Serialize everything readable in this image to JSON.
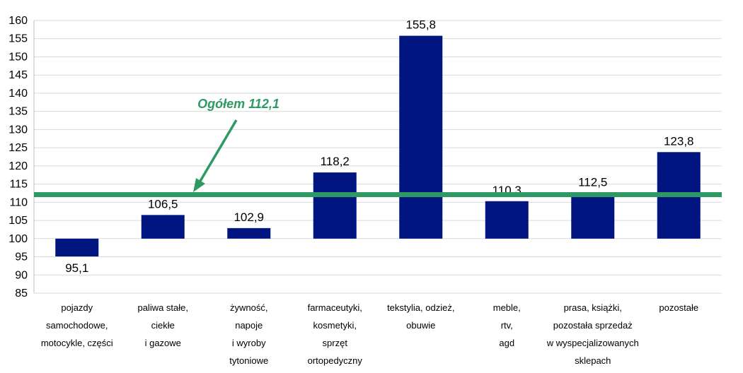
{
  "chart_data": {
    "type": "bar",
    "title": "",
    "xlabel": "",
    "ylabel": "",
    "ylim": [
      85,
      160
    ],
    "baseline": 100,
    "yticks": [
      85,
      90,
      95,
      100,
      105,
      110,
      115,
      120,
      125,
      130,
      135,
      140,
      145,
      150,
      155,
      160
    ],
    "grid": true,
    "categories": [
      [
        "pojazdy",
        "samochodowe,",
        "motocykle, części"
      ],
      [
        "paliwa stałe,",
        "ciekłe",
        "i gazowe"
      ],
      [
        "żywność,",
        "napoje",
        "i wyroby",
        "tytoniowe"
      ],
      [
        "farmaceutyki,",
        "kosmetyki,",
        "sprzęt",
        "ortopedyczny"
      ],
      [
        "tekstylia, odzież,",
        "obuwie"
      ],
      [
        "meble,",
        "rtv,",
        "agd"
      ],
      [
        "prasa, książki,",
        "pozostała sprzedaż",
        "w wyspecjalizowanych",
        "sklepach"
      ],
      [
        "pozostałe"
      ]
    ],
    "values": [
      95.1,
      106.5,
      102.9,
      118.2,
      155.8,
      110.3,
      112.5,
      123.8
    ],
    "value_labels": [
      "95,1",
      "106,5",
      "102,9",
      "118,2",
      "155,8",
      "110,3",
      "112,5",
      "123,8"
    ],
    "reference_line": {
      "value": 112.1,
      "label": "Ogółem 112,1"
    },
    "colors": {
      "bar": "#001580",
      "reference": "#2e9a63",
      "grid": "#d9d9d9",
      "axis": "#bfbfbf"
    }
  }
}
